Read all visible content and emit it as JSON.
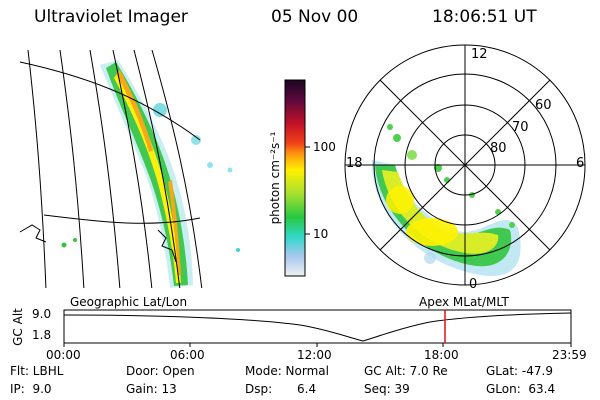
{
  "header": {
    "instrument": "Ultraviolet Imager",
    "date": "05 Nov 00",
    "time": "18:06:51 UT"
  },
  "colorbar": {
    "label": "photon cm⁻²s⁻¹",
    "ticks": [
      "100",
      "10"
    ],
    "colors": [
      "#1a0520",
      "#5a0a3c",
      "#c0102a",
      "#f04018",
      "#ff9a10",
      "#fff000",
      "#a8e030",
      "#28c840",
      "#30d8c8",
      "#a8c8f0",
      "#f0f0f0"
    ]
  },
  "left_map": {
    "label": "Geographic Lat/Lon"
  },
  "right_map": {
    "label": "Apex MLat/MLT",
    "mlt_labels": [
      "12",
      "18",
      "6",
      "0"
    ],
    "lat_labels": [
      "60",
      "70",
      "80"
    ]
  },
  "altitude_plot": {
    "ylabel": "GC Alt",
    "y_ticks": [
      "9.0",
      "1.8"
    ],
    "x_ticks": [
      "00:00",
      "06:00",
      "12:00",
      "18:00",
      "23:59"
    ],
    "marker_time": "18:06"
  },
  "footer": {
    "filter": "Flt: LBHL",
    "ip": "IP:  9.0",
    "door": "Door: Open",
    "gain": "Gain: 13",
    "mode": "Mode: Normal",
    "dsp": "Dsp:",
    "dsp_value": "6.4",
    "gc_alt": "GC Alt: 7.0 Re",
    "seq": "Seq: 39",
    "glat": "GLat: -47.9",
    "glon": "GLon:  63.4"
  }
}
